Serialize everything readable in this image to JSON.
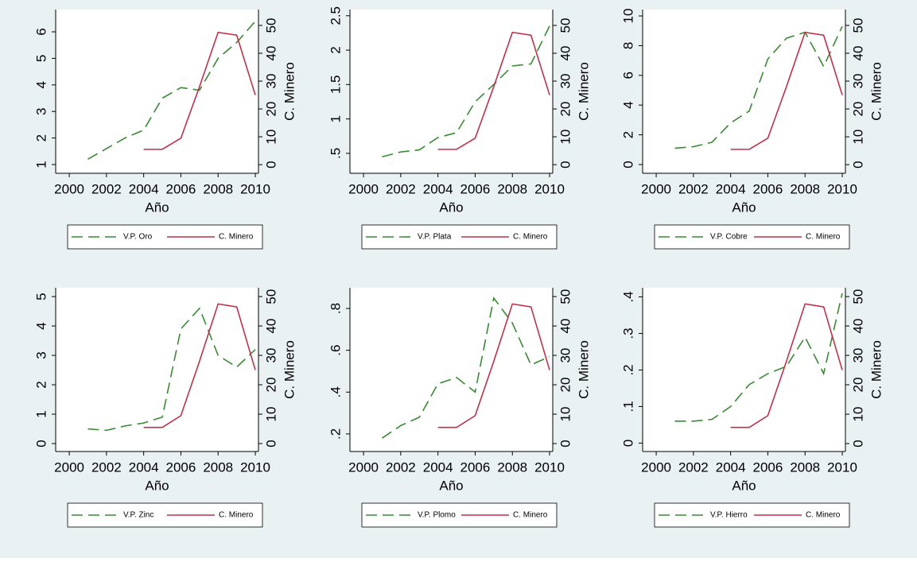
{
  "chart_data": [
    {
      "type": "line",
      "xlabel": "Año",
      "y2label": "C. Minero",
      "x": [
        2001,
        2002,
        2003,
        2004,
        2005,
        2006,
        2007,
        2008,
        2009,
        2010
      ],
      "xlim": [
        1999.27,
        2010.17
      ],
      "xticks": [
        2000,
        2002,
        2004,
        2006,
        2008,
        2010
      ],
      "ylim": [
        0.67,
        6.84
      ],
      "yticks": [
        1,
        2,
        3,
        4,
        5,
        6
      ],
      "y2lim": [
        -3.1,
        55.7
      ],
      "y2ticks": [
        0,
        10,
        20,
        30,
        40,
        50
      ],
      "legend": "bottom",
      "series": [
        {
          "name": "V.P. Oro",
          "color": "#3a8a34",
          "dash": "dashed",
          "values": [
            1.2,
            1.6,
            2.0,
            2.3,
            3.5,
            3.9,
            3.8,
            5.0,
            5.6,
            6.4
          ]
        },
        {
          "name": "C. Minero",
          "color": "#c0304a",
          "axis": "y2",
          "values": [
            null,
            null,
            null,
            5.5,
            5.5,
            9.5,
            28,
            47.5,
            46.5,
            25
          ]
        }
      ]
    },
    {
      "type": "line",
      "xlabel": "Año",
      "y2label": "C. Minero",
      "x": [
        2001,
        2002,
        2003,
        2004,
        2005,
        2006,
        2007,
        2008,
        2009,
        2010
      ],
      "xlim": [
        1999.27,
        2010.17
      ],
      "xticks": [
        2000,
        2002,
        2004,
        2006,
        2008,
        2010
      ],
      "ylim": [
        0.21,
        2.59
      ],
      "yticks": [
        {
          "value": 0.5,
          "label": ".5"
        },
        1,
        1.5,
        2,
        2.5
      ],
      "y2lim": [
        -3.1,
        55.7
      ],
      "y2ticks": [
        0,
        10,
        20,
        30,
        40,
        50
      ],
      "legend": "bottom",
      "series": [
        {
          "name": "V.P. Plata",
          "color": "#3a8a34",
          "dash": "dashed",
          "values": [
            0.45,
            0.52,
            0.55,
            0.73,
            0.8,
            1.25,
            1.5,
            1.77,
            1.8,
            2.35
          ]
        },
        {
          "name": "C. Minero",
          "color": "#c0304a",
          "axis": "y2",
          "values": [
            null,
            null,
            null,
            5.5,
            5.5,
            9.5,
            28,
            47.5,
            46.5,
            25
          ]
        }
      ]
    },
    {
      "type": "line",
      "xlabel": "Año",
      "y2label": "C. Minero",
      "x": [
        2001,
        2002,
        2003,
        2004,
        2005,
        2006,
        2007,
        2008,
        2009,
        2010
      ],
      "xlim": [
        1999.27,
        2010.17
      ],
      "xticks": [
        2000,
        2002,
        2004,
        2006,
        2008,
        2010
      ],
      "ylim": [
        -0.59,
        10.43
      ],
      "yticks": [
        0,
        2,
        4,
        6,
        8,
        10
      ],
      "y2lim": [
        -3.1,
        55.7
      ],
      "y2ticks": [
        0,
        10,
        20,
        30,
        40,
        50
      ],
      "legend": "bottom",
      "series": [
        {
          "name": "V.P. Cobre",
          "color": "#3a8a34",
          "dash": "dashed",
          "values": [
            1.1,
            1.2,
            1.5,
            2.8,
            3.6,
            7.1,
            8.5,
            8.9,
            6.6,
            9.3
          ]
        },
        {
          "name": "C. Minero",
          "color": "#c0304a",
          "axis": "y2",
          "values": [
            null,
            null,
            null,
            5.5,
            5.5,
            9.5,
            28,
            47.5,
            46.5,
            25
          ]
        }
      ]
    },
    {
      "type": "line",
      "xlabel": "Año",
      "y2label": "C. Minero",
      "x": [
        2001,
        2002,
        2003,
        2004,
        2005,
        2006,
        2007,
        2008,
        2009,
        2010
      ],
      "xlim": [
        1999.27,
        2010.17
      ],
      "xticks": [
        2000,
        2002,
        2004,
        2006,
        2008,
        2010
      ],
      "ylim": [
        -0.27,
        5.3
      ],
      "yticks": [
        0,
        1,
        2,
        3,
        4,
        5
      ],
      "y2lim": [
        -2.7,
        53.0
      ],
      "y2ticks": [
        0,
        10,
        20,
        30,
        40,
        50
      ],
      "legend": "bottom",
      "series": [
        {
          "name": "V.P. Zinc",
          "color": "#3a8a34",
          "dash": "dashed",
          "values": [
            0.5,
            0.45,
            0.6,
            0.7,
            0.9,
            3.9,
            4.6,
            3.0,
            2.6,
            3.2
          ]
        },
        {
          "name": "C. Minero",
          "color": "#c0304a",
          "axis": "y2",
          "values": [
            null,
            null,
            null,
            5.5,
            5.5,
            9.5,
            28,
            47.5,
            46.5,
            25
          ]
        }
      ]
    },
    {
      "type": "line",
      "xlabel": "Año",
      "y2label": "C. Minero",
      "x": [
        2001,
        2002,
        2003,
        2004,
        2005,
        2006,
        2007,
        2008,
        2009,
        2010
      ],
      "xlim": [
        1999.27,
        2010.17
      ],
      "xticks": [
        2000,
        2002,
        2004,
        2006,
        2008,
        2010
      ],
      "ylim": [
        0.116,
        0.899
      ],
      "yticks": [
        {
          "value": 0.2,
          "label": ".2"
        },
        {
          "value": 0.4,
          "label": ".4"
        },
        {
          "value": 0.6,
          "label": ".6"
        },
        {
          "value": 0.8,
          "label": ".8"
        }
      ],
      "y2lim": [
        -2.7,
        53.0
      ],
      "y2ticks": [
        0,
        10,
        20,
        30,
        40,
        50
      ],
      "legend": "bottom",
      "series": [
        {
          "name": "V.P. Plomo",
          "color": "#3a8a34",
          "dash": "dashed",
          "values": [
            0.18,
            0.24,
            0.28,
            0.44,
            0.47,
            0.4,
            0.85,
            0.73,
            0.53,
            0.57
          ]
        },
        {
          "name": "C. Minero",
          "color": "#c0304a",
          "axis": "y2",
          "values": [
            null,
            null,
            null,
            5.5,
            5.5,
            9.5,
            28,
            47.5,
            46.5,
            25
          ]
        }
      ]
    },
    {
      "type": "line",
      "xlabel": "Año",
      "y2label": "C. Minero",
      "x": [
        2001,
        2002,
        2003,
        2004,
        2005,
        2006,
        2007,
        2008,
        2009,
        2010
      ],
      "xlim": [
        1999.27,
        2010.17
      ],
      "xticks": [
        2000,
        2002,
        2004,
        2006,
        2008,
        2010
      ],
      "ylim": [
        -0.023,
        0.425
      ],
      "yticks": [
        0,
        {
          "value": 0.1,
          "label": ".1"
        },
        {
          "value": 0.2,
          "label": ".2"
        },
        {
          "value": 0.3,
          "label": ".3"
        },
        {
          "value": 0.4,
          "label": ".4"
        }
      ],
      "y2lim": [
        -2.7,
        53.0
      ],
      "y2ticks": [
        0,
        10,
        20,
        30,
        40,
        50
      ],
      "legend": "bottom",
      "series": [
        {
          "name": "V.P. Hierro",
          "color": "#3a8a34",
          "dash": "dashed",
          "values": [
            0.06,
            0.06,
            0.065,
            0.1,
            0.16,
            0.19,
            0.21,
            0.29,
            0.19,
            0.41
          ]
        },
        {
          "name": "C. Minero",
          "color": "#c0304a",
          "axis": "y2",
          "values": [
            null,
            null,
            null,
            5.5,
            5.5,
            9.5,
            28,
            47.5,
            46.5,
            25
          ]
        }
      ]
    }
  ]
}
